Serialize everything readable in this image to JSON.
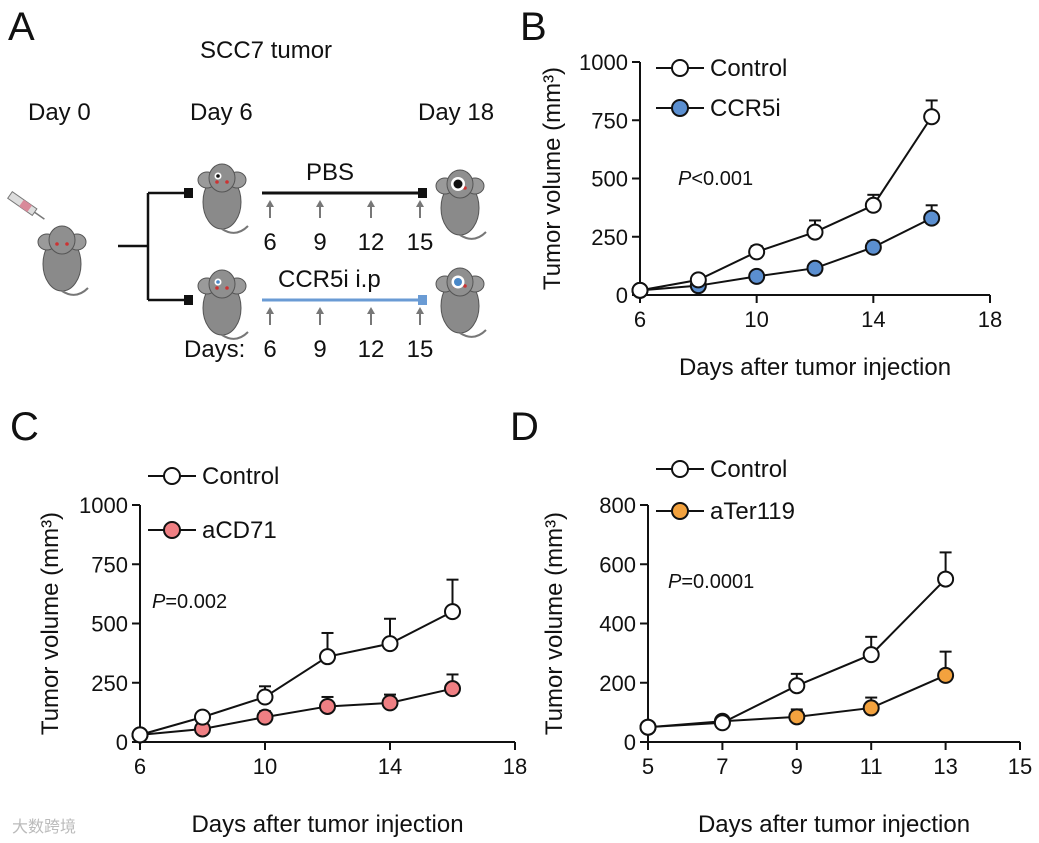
{
  "schematic": {
    "letter": "A",
    "title": "SCC7 tumor",
    "day0": "Day 0",
    "day6": "Day 6",
    "day18": "Day 18",
    "pbs": "PBS",
    "ccr5i": "CCR5i i.p",
    "days_prefix": "Days:",
    "doses_top": [
      "6",
      "9",
      "12",
      "15"
    ],
    "doses_bottom": [
      "6",
      "9",
      "12",
      "15"
    ],
    "line_colors": {
      "pbs": "#111111",
      "ccr5i": "#6a9bd4"
    }
  },
  "watermark": "大数跨境",
  "chart_data": [
    {
      "letter": "B",
      "type": "line",
      "xlabel": "Days after tumor injection",
      "ylabel": "Tumor volume (mm³)",
      "xlim": [
        6,
        18
      ],
      "ylim": [
        0,
        1000
      ],
      "xticks": [
        6,
        10,
        14,
        18
      ],
      "yticks": [
        0,
        250,
        500,
        750,
        1000
      ],
      "pvalue": {
        "p": "P",
        "rest": "<0.001"
      },
      "series": [
        {
          "name": "Control",
          "color": "#ffffff",
          "x": [
            6,
            8,
            10,
            12,
            14,
            16
          ],
          "y": [
            20,
            65,
            185,
            270,
            385,
            765
          ],
          "err": [
            10,
            15,
            25,
            50,
            45,
            70
          ]
        },
        {
          "name": "CCR5i",
          "color": "#5b8fd0",
          "x": [
            6,
            8,
            10,
            12,
            14,
            16
          ],
          "y": [
            20,
            40,
            80,
            115,
            205,
            330
          ],
          "err": [
            8,
            10,
            15,
            20,
            25,
            55
          ]
        }
      ]
    },
    {
      "letter": "C",
      "type": "line",
      "xlabel": "Days after tumor injection",
      "ylabel": "Tumor volume (mm³)",
      "xlim": [
        6,
        18
      ],
      "ylim": [
        0,
        1000
      ],
      "xticks": [
        6,
        10,
        14,
        18
      ],
      "yticks": [
        0,
        250,
        500,
        750,
        1000
      ],
      "pvalue": {
        "p": "P",
        "rest": "=0.002"
      },
      "series": [
        {
          "name": "Control",
          "color": "#ffffff",
          "x": [
            6,
            8,
            10,
            12,
            14,
            16
          ],
          "y": [
            30,
            105,
            190,
            360,
            415,
            550
          ],
          "err": [
            10,
            20,
            45,
            100,
            105,
            135
          ]
        },
        {
          "name": "aCD71",
          "color": "#ef7f83",
          "x": [
            6,
            8,
            10,
            12,
            14,
            16
          ],
          "y": [
            30,
            55,
            105,
            150,
            165,
            225
          ],
          "err": [
            8,
            15,
            25,
            40,
            35,
            60
          ]
        }
      ]
    },
    {
      "letter": "D",
      "type": "line",
      "xlabel": "Days after tumor injection",
      "ylabel": "Tumor volume (mm³)",
      "xlim": [
        5,
        15
      ],
      "ylim": [
        0,
        800
      ],
      "xticks": [
        5,
        7,
        9,
        11,
        13,
        15
      ],
      "yticks": [
        0,
        200,
        400,
        600,
        800
      ],
      "pvalue": {
        "p": "P",
        "rest": "=0.0001"
      },
      "series": [
        {
          "name": "Control",
          "color": "#ffffff",
          "x": [
            5,
            7,
            9,
            11,
            13
          ],
          "y": [
            50,
            65,
            190,
            295,
            550
          ],
          "err": [
            8,
            10,
            40,
            60,
            90
          ]
        },
        {
          "name": "aTer119",
          "color": "#f3a23e",
          "x": [
            5,
            7,
            9,
            11,
            13
          ],
          "y": [
            50,
            70,
            85,
            115,
            225
          ],
          "err": [
            8,
            10,
            25,
            35,
            80
          ]
        }
      ]
    }
  ]
}
